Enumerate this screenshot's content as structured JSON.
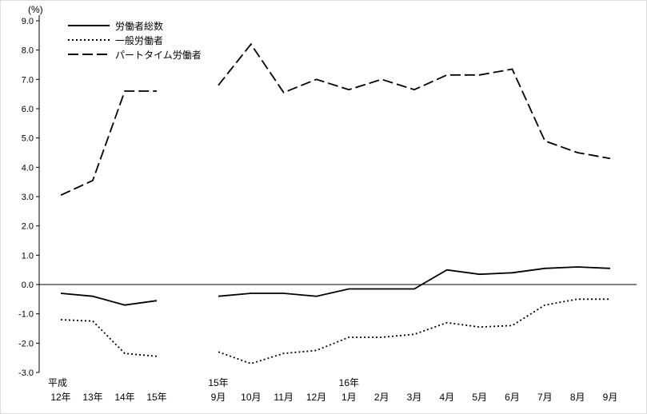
{
  "chart_data": {
    "type": "line",
    "title": "",
    "unit_label": "(%)",
    "ylim": [
      -3.0,
      9.0
    ],
    "ytick_step": 1.0,
    "yticks": [
      9,
      8,
      7,
      6,
      5,
      4,
      3,
      2,
      1,
      0,
      -1,
      -2,
      -3
    ],
    "grid": false,
    "legend_position": "top-left-inside",
    "groups": [
      {
        "era_label": "平成",
        "categories": [
          "12年",
          "13年",
          "14年",
          "15年"
        ]
      },
      {
        "categories": [
          "9月",
          "10月",
          "11月",
          "12月",
          "1月",
          "2月",
          "3月",
          "4月",
          "5月",
          "6月",
          "7月",
          "8月",
          "9月"
        ],
        "year_labels": [
          {
            "index": 0,
            "label": "15年"
          },
          {
            "index": 4,
            "label": "16年"
          }
        ]
      }
    ],
    "series": [
      {
        "name": "労働者総数",
        "style": "solid",
        "annual": [
          -0.3,
          -0.4,
          -0.7,
          -0.55
        ],
        "monthly": [
          -0.4,
          -0.3,
          -0.3,
          -0.4,
          -0.15,
          -0.15,
          -0.15,
          0.5,
          0.35,
          0.4,
          0.55,
          0.6,
          0.55
        ]
      },
      {
        "name": "一般労働者",
        "style": "dotted",
        "annual": [
          -1.2,
          -1.25,
          -2.35,
          -2.45
        ],
        "monthly": [
          -2.3,
          -2.7,
          -2.35,
          -2.25,
          -1.8,
          -1.8,
          -1.7,
          -1.3,
          -1.45,
          -1.4,
          -0.7,
          -0.5,
          -0.5
        ]
      },
      {
        "name": "パートタイム労働者",
        "style": "dashed",
        "annual": [
          3.05,
          3.55,
          6.6,
          6.6
        ],
        "monthly": [
          6.8,
          8.2,
          6.55,
          7.0,
          6.65,
          7.0,
          6.65,
          7.15,
          7.15,
          7.35,
          4.9,
          4.5,
          4.3
        ]
      }
    ],
    "colors": {
      "line": "#000000",
      "axis": "#000000",
      "background": "#ffffff"
    }
  }
}
